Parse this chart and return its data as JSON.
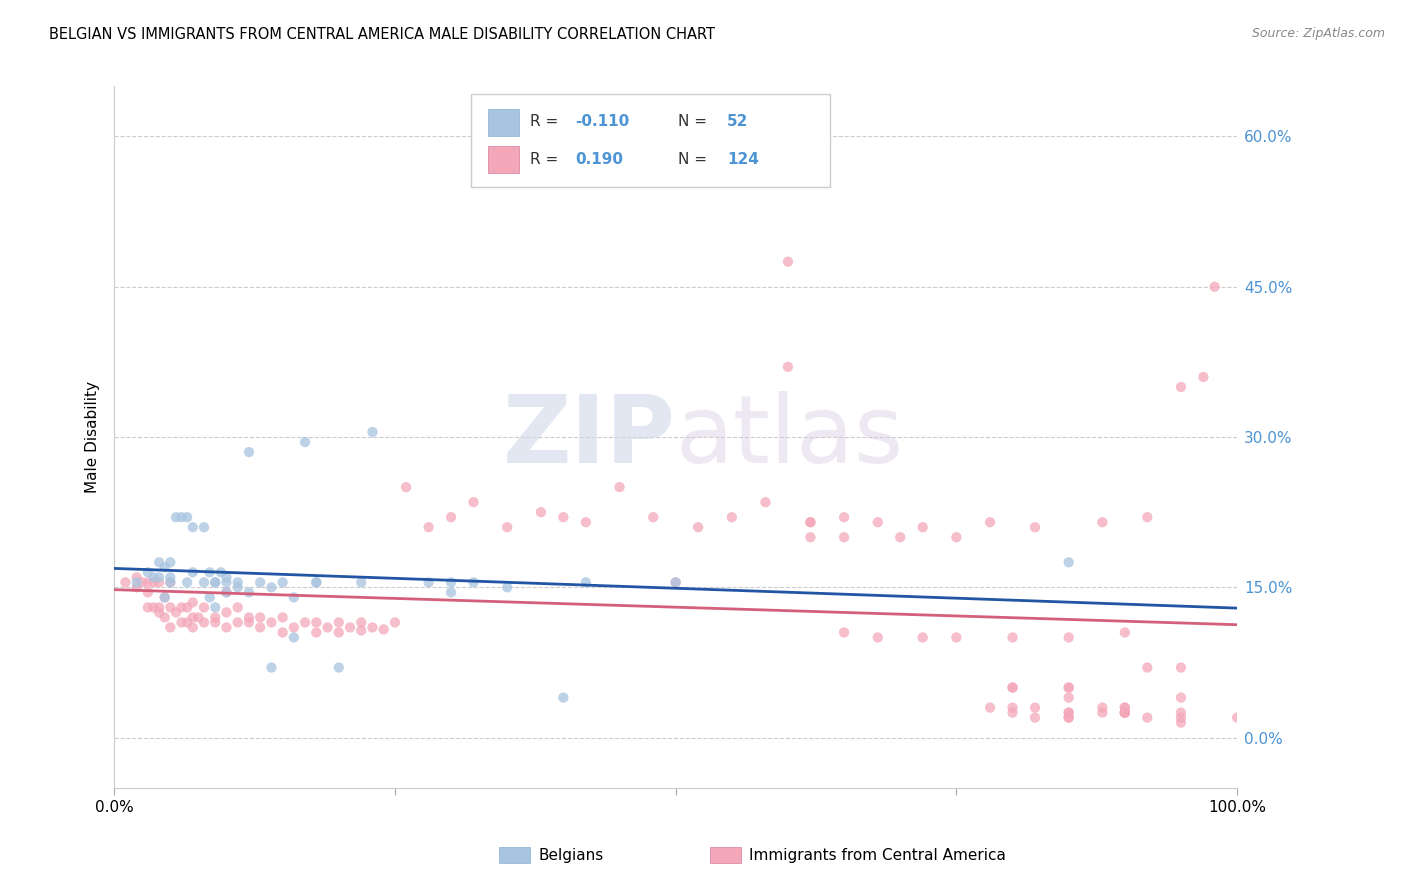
{
  "title": "BELGIAN VS IMMIGRANTS FROM CENTRAL AMERICA MALE DISABILITY CORRELATION CHART",
  "source": "Source: ZipAtlas.com",
  "ylabel": "Male Disability",
  "xlim": [
    0.0,
    1.0
  ],
  "ylim": [
    -0.05,
    0.65
  ],
  "y_ticks_right": [
    0.0,
    0.15,
    0.3,
    0.45,
    0.6
  ],
  "y_tick_labels_right": [
    "0.0%",
    "15.0%",
    "30.0%",
    "45.0%",
    "60.0%"
  ],
  "watermark_zip": "ZIP",
  "watermark_atlas": "atlas",
  "color_belgian": "#a8c4e0",
  "color_immigrant": "#f4a7b9",
  "color_line_belgian": "#2255a4",
  "color_line_immigrant": "#d45f7a",
  "color_right_axis": "#4d94d4",
  "scatter_alpha": 0.75,
  "scatter_size": 55,
  "belgians_x": [
    0.02,
    0.03,
    0.035,
    0.04,
    0.04,
    0.045,
    0.045,
    0.05,
    0.05,
    0.05,
    0.055,
    0.06,
    0.065,
    0.065,
    0.07,
    0.07,
    0.08,
    0.08,
    0.085,
    0.085,
    0.09,
    0.09,
    0.09,
    0.095,
    0.1,
    0.1,
    0.1,
    0.11,
    0.11,
    0.12,
    0.12,
    0.13,
    0.14,
    0.14,
    0.15,
    0.16,
    0.16,
    0.17,
    0.18,
    0.18,
    0.2,
    0.22,
    0.23,
    0.28,
    0.3,
    0.3,
    0.32,
    0.35,
    0.4,
    0.42,
    0.5,
    0.85
  ],
  "belgians_y": [
    0.155,
    0.165,
    0.16,
    0.16,
    0.175,
    0.14,
    0.17,
    0.155,
    0.16,
    0.175,
    0.22,
    0.22,
    0.155,
    0.22,
    0.165,
    0.21,
    0.155,
    0.21,
    0.14,
    0.165,
    0.13,
    0.155,
    0.155,
    0.165,
    0.155,
    0.16,
    0.145,
    0.155,
    0.15,
    0.145,
    0.285,
    0.155,
    0.07,
    0.15,
    0.155,
    0.1,
    0.14,
    0.295,
    0.155,
    0.155,
    0.07,
    0.155,
    0.305,
    0.155,
    0.155,
    0.145,
    0.155,
    0.15,
    0.04,
    0.155,
    0.155,
    0.175
  ],
  "immigrants_x": [
    0.01,
    0.02,
    0.02,
    0.025,
    0.03,
    0.03,
    0.03,
    0.035,
    0.035,
    0.04,
    0.04,
    0.04,
    0.045,
    0.045,
    0.05,
    0.05,
    0.05,
    0.055,
    0.06,
    0.06,
    0.065,
    0.065,
    0.07,
    0.07,
    0.07,
    0.075,
    0.08,
    0.08,
    0.09,
    0.09,
    0.1,
    0.1,
    0.1,
    0.11,
    0.11,
    0.12,
    0.12,
    0.13,
    0.13,
    0.14,
    0.15,
    0.15,
    0.16,
    0.17,
    0.18,
    0.18,
    0.19,
    0.2,
    0.2,
    0.21,
    0.22,
    0.22,
    0.23,
    0.24,
    0.25,
    0.26,
    0.28,
    0.3,
    0.32,
    0.35,
    0.38,
    0.4,
    0.42,
    0.45,
    0.48,
    0.5,
    0.52,
    0.55,
    0.58,
    0.6,
    0.62,
    0.62,
    0.65,
    0.65,
    0.68,
    0.7,
    0.72,
    0.75,
    0.78,
    0.8,
    0.82,
    0.85,
    0.88,
    0.9,
    0.92,
    0.95,
    0.97,
    0.98,
    0.6,
    0.62,
    0.65,
    0.68,
    0.72,
    0.75,
    0.8,
    0.85,
    0.8,
    0.85,
    0.9,
    0.95,
    0.85,
    0.9,
    0.95,
    1.0,
    0.82,
    0.85,
    0.88,
    0.9,
    0.82,
    0.85,
    0.88,
    0.9,
    0.92,
    0.95,
    0.78,
    0.8,
    0.85,
    0.9,
    0.92,
    0.95,
    0.8,
    0.85,
    0.9,
    0.95
  ],
  "immigrants_y": [
    0.155,
    0.15,
    0.16,
    0.155,
    0.13,
    0.145,
    0.155,
    0.13,
    0.155,
    0.125,
    0.13,
    0.155,
    0.12,
    0.14,
    0.11,
    0.13,
    0.155,
    0.125,
    0.115,
    0.13,
    0.115,
    0.13,
    0.11,
    0.12,
    0.135,
    0.12,
    0.115,
    0.13,
    0.115,
    0.12,
    0.11,
    0.125,
    0.145,
    0.115,
    0.13,
    0.115,
    0.12,
    0.11,
    0.12,
    0.115,
    0.105,
    0.12,
    0.11,
    0.115,
    0.105,
    0.115,
    0.11,
    0.105,
    0.115,
    0.11,
    0.107,
    0.115,
    0.11,
    0.108,
    0.115,
    0.25,
    0.21,
    0.22,
    0.235,
    0.21,
    0.225,
    0.22,
    0.215,
    0.25,
    0.22,
    0.155,
    0.21,
    0.22,
    0.235,
    0.37,
    0.215,
    0.215,
    0.22,
    0.2,
    0.215,
    0.2,
    0.21,
    0.2,
    0.215,
    0.1,
    0.21,
    0.1,
    0.215,
    0.105,
    0.22,
    0.35,
    0.36,
    0.45,
    0.475,
    0.2,
    0.105,
    0.1,
    0.1,
    0.1,
    0.05,
    0.05,
    0.03,
    0.04,
    0.025,
    0.02,
    0.02,
    0.025,
    0.015,
    0.02,
    0.02,
    0.025,
    0.025,
    0.03,
    0.03,
    0.025,
    0.03,
    0.025,
    0.02,
    0.025,
    0.03,
    0.025,
    0.02,
    0.025,
    0.07,
    0.07,
    0.05,
    0.05,
    0.03,
    0.04
  ]
}
